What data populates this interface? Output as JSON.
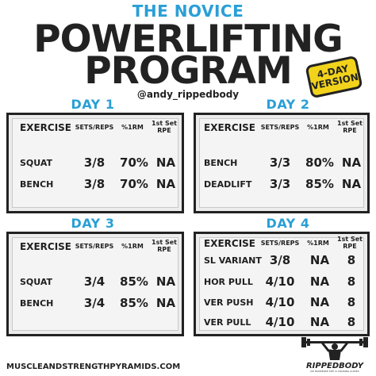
{
  "header": {
    "kicker": "THE NOVICE",
    "title_line1": "POWERLIFTING",
    "title_line2": "PROGRAM",
    "badge_line1": "4-DAY",
    "badge_line2": "VERSION",
    "handle": "@andy_rippedbody"
  },
  "colors": {
    "accent_blue": "#2a9fd6",
    "badge_yellow": "#f2d31b",
    "text_dark": "#222222"
  },
  "columns": {
    "exercise": "EXERCISE",
    "sets_reps": "SETS/REPS",
    "pct_1rm": "%1RM",
    "rpe_line1": "1st Set",
    "rpe_line2": "RPE"
  },
  "days": [
    {
      "label": "DAY 1",
      "rows": [
        {
          "exercise": "SQUAT",
          "sets_reps": "3/8",
          "pct": "70%",
          "rpe": "NA"
        },
        {
          "exercise": "BENCH",
          "sets_reps": "3/8",
          "pct": "70%",
          "rpe": "NA"
        }
      ]
    },
    {
      "label": "DAY 2",
      "rows": [
        {
          "exercise": "BENCH",
          "sets_reps": "3/3",
          "pct": "80%",
          "rpe": "NA"
        },
        {
          "exercise": "DEADLIFT",
          "sets_reps": "3/3",
          "pct": "85%",
          "rpe": "NA"
        }
      ]
    },
    {
      "label": "DAY 3",
      "rows": [
        {
          "exercise": "SQUAT",
          "sets_reps": "3/4",
          "pct": "85%",
          "rpe": "NA"
        },
        {
          "exercise": "BENCH",
          "sets_reps": "3/4",
          "pct": "85%",
          "rpe": "NA"
        }
      ]
    },
    {
      "label": "DAY 4",
      "rows": [
        {
          "exercise": "SL VARIANT",
          "sets_reps": "3/8",
          "pct": "NA",
          "rpe": "8"
        },
        {
          "exercise": "HOR PULL",
          "sets_reps": "4/10",
          "pct": "NA",
          "rpe": "8"
        },
        {
          "exercise": "VER PUSH",
          "sets_reps": "4/10",
          "pct": "NA",
          "rpe": "8"
        },
        {
          "exercise": "VER PULL",
          "sets_reps": "4/10",
          "pct": "NA",
          "rpe": "8"
        }
      ]
    }
  ],
  "footer": {
    "website": "MUSCLEANDSTRENGTHPYRAMIDS.COM",
    "logo_text": "RIPPEDBODY",
    "logo_sub": "NO NONSENSE DIET & TRAINING GUIDES"
  }
}
